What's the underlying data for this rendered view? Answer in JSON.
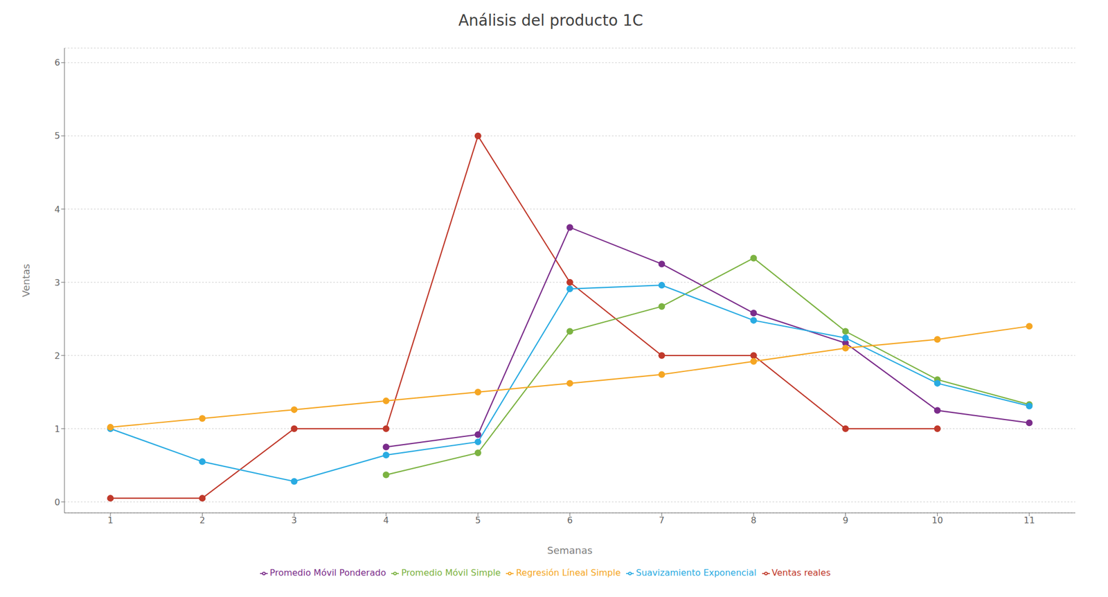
{
  "chart_data": {
    "type": "line",
    "title": "Análisis del producto 1C",
    "x_label": "Semanas",
    "y_label": "Ventas",
    "x": [
      1,
      2,
      3,
      4,
      5,
      6,
      7,
      8,
      9,
      10,
      11
    ],
    "xlim": [
      0.5,
      11.5
    ],
    "xticks": [
      1,
      2,
      3,
      4,
      5,
      6,
      7,
      8,
      9,
      10,
      11
    ],
    "ylim": [
      -0.15,
      6.2
    ],
    "yticks": [
      0,
      1,
      2,
      3,
      4,
      5,
      6
    ],
    "grid": true,
    "legend": "bottom",
    "marker": "circle",
    "series": [
      {
        "name": "Ventas reales",
        "color": "#C0392B",
        "values": [
          0.05,
          0.05,
          1.0,
          1.0,
          5.0,
          3.0,
          2.0,
          2.0,
          1.0,
          1.0,
          null
        ]
      },
      {
        "name": "Promedio Móvil Simple",
        "color": "#7CB342",
        "values": [
          null,
          null,
          null,
          0.37,
          0.67,
          2.33,
          2.67,
          3.33,
          2.33,
          1.67,
          1.33
        ]
      },
      {
        "name": "Promedio Móvil Ponderado",
        "color": "#7B2D8B",
        "values": [
          null,
          null,
          null,
          0.75,
          0.92,
          3.75,
          3.25,
          2.58,
          2.17,
          1.25,
          1.08
        ]
      },
      {
        "name": "Suavizamiento Exponencial",
        "color": "#29ABE2",
        "values": [
          1.0,
          0.55,
          0.28,
          0.64,
          0.82,
          2.91,
          2.96,
          2.48,
          2.24,
          1.62,
          1.31
        ]
      },
      {
        "name": "Regresión Líneal Simple",
        "color": "#F5A623",
        "values": [
          1.02,
          1.14,
          1.26,
          1.38,
          1.5,
          1.62,
          1.74,
          1.92,
          2.1,
          2.22,
          2.4
        ]
      }
    ]
  }
}
